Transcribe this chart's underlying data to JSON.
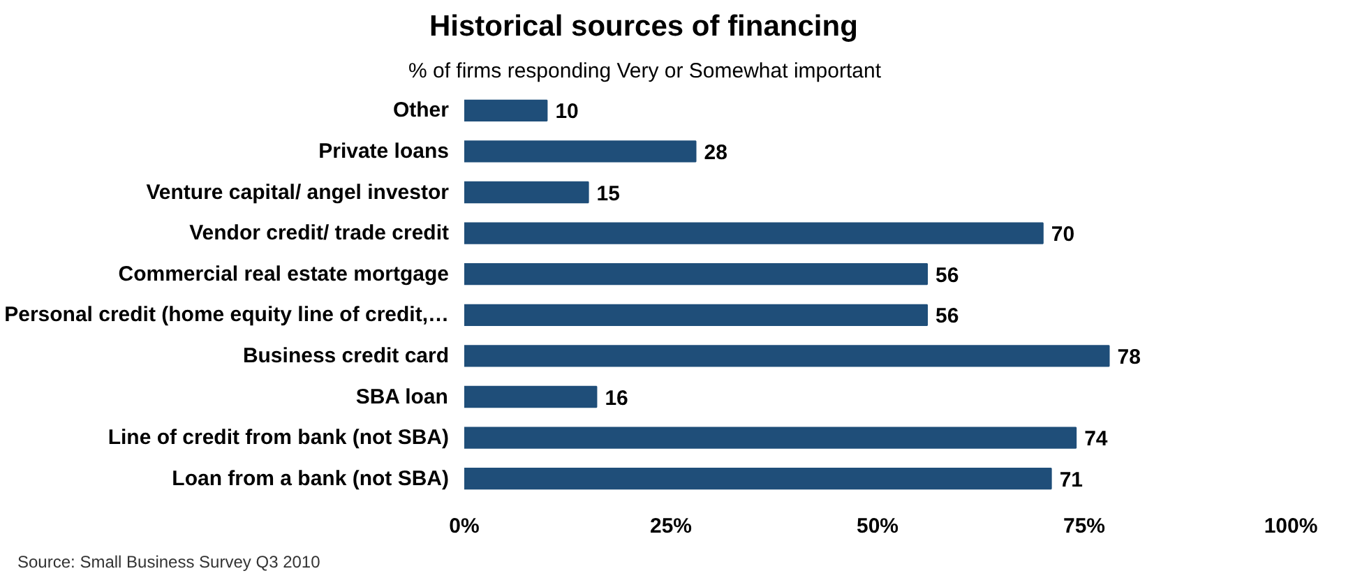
{
  "chart_data": {
    "type": "bar",
    "orientation": "horizontal",
    "title": "Historical sources of financing",
    "subtitle": "% of firms responding Very or Somewhat important",
    "categories": [
      "Other",
      "Private loans",
      "Venture capital/ angel investor",
      "Vendor credit/ trade credit",
      "Commercial real estate mortgage",
      "Personal credit (home equity line of credit,…",
      "Business credit card",
      "SBA loan",
      "Line of credit from bank (not SBA)",
      "Loan from a bank (not SBA)"
    ],
    "values": [
      10,
      28,
      15,
      70,
      56,
      56,
      78,
      16,
      74,
      71
    ],
    "color": "#1f4e79",
    "xlim": [
      0,
      100
    ],
    "xticks": [
      {
        "value": 0,
        "label": "0%"
      },
      {
        "value": 25,
        "label": "25%"
      },
      {
        "value": 50,
        "label": "50%"
      },
      {
        "value": 75,
        "label": "75%"
      },
      {
        "value": 100,
        "label": "100%"
      }
    ],
    "data_labels": true,
    "grid": false,
    "annotations": [
      "Source: Small Business Survey Q3 2010"
    ]
  }
}
